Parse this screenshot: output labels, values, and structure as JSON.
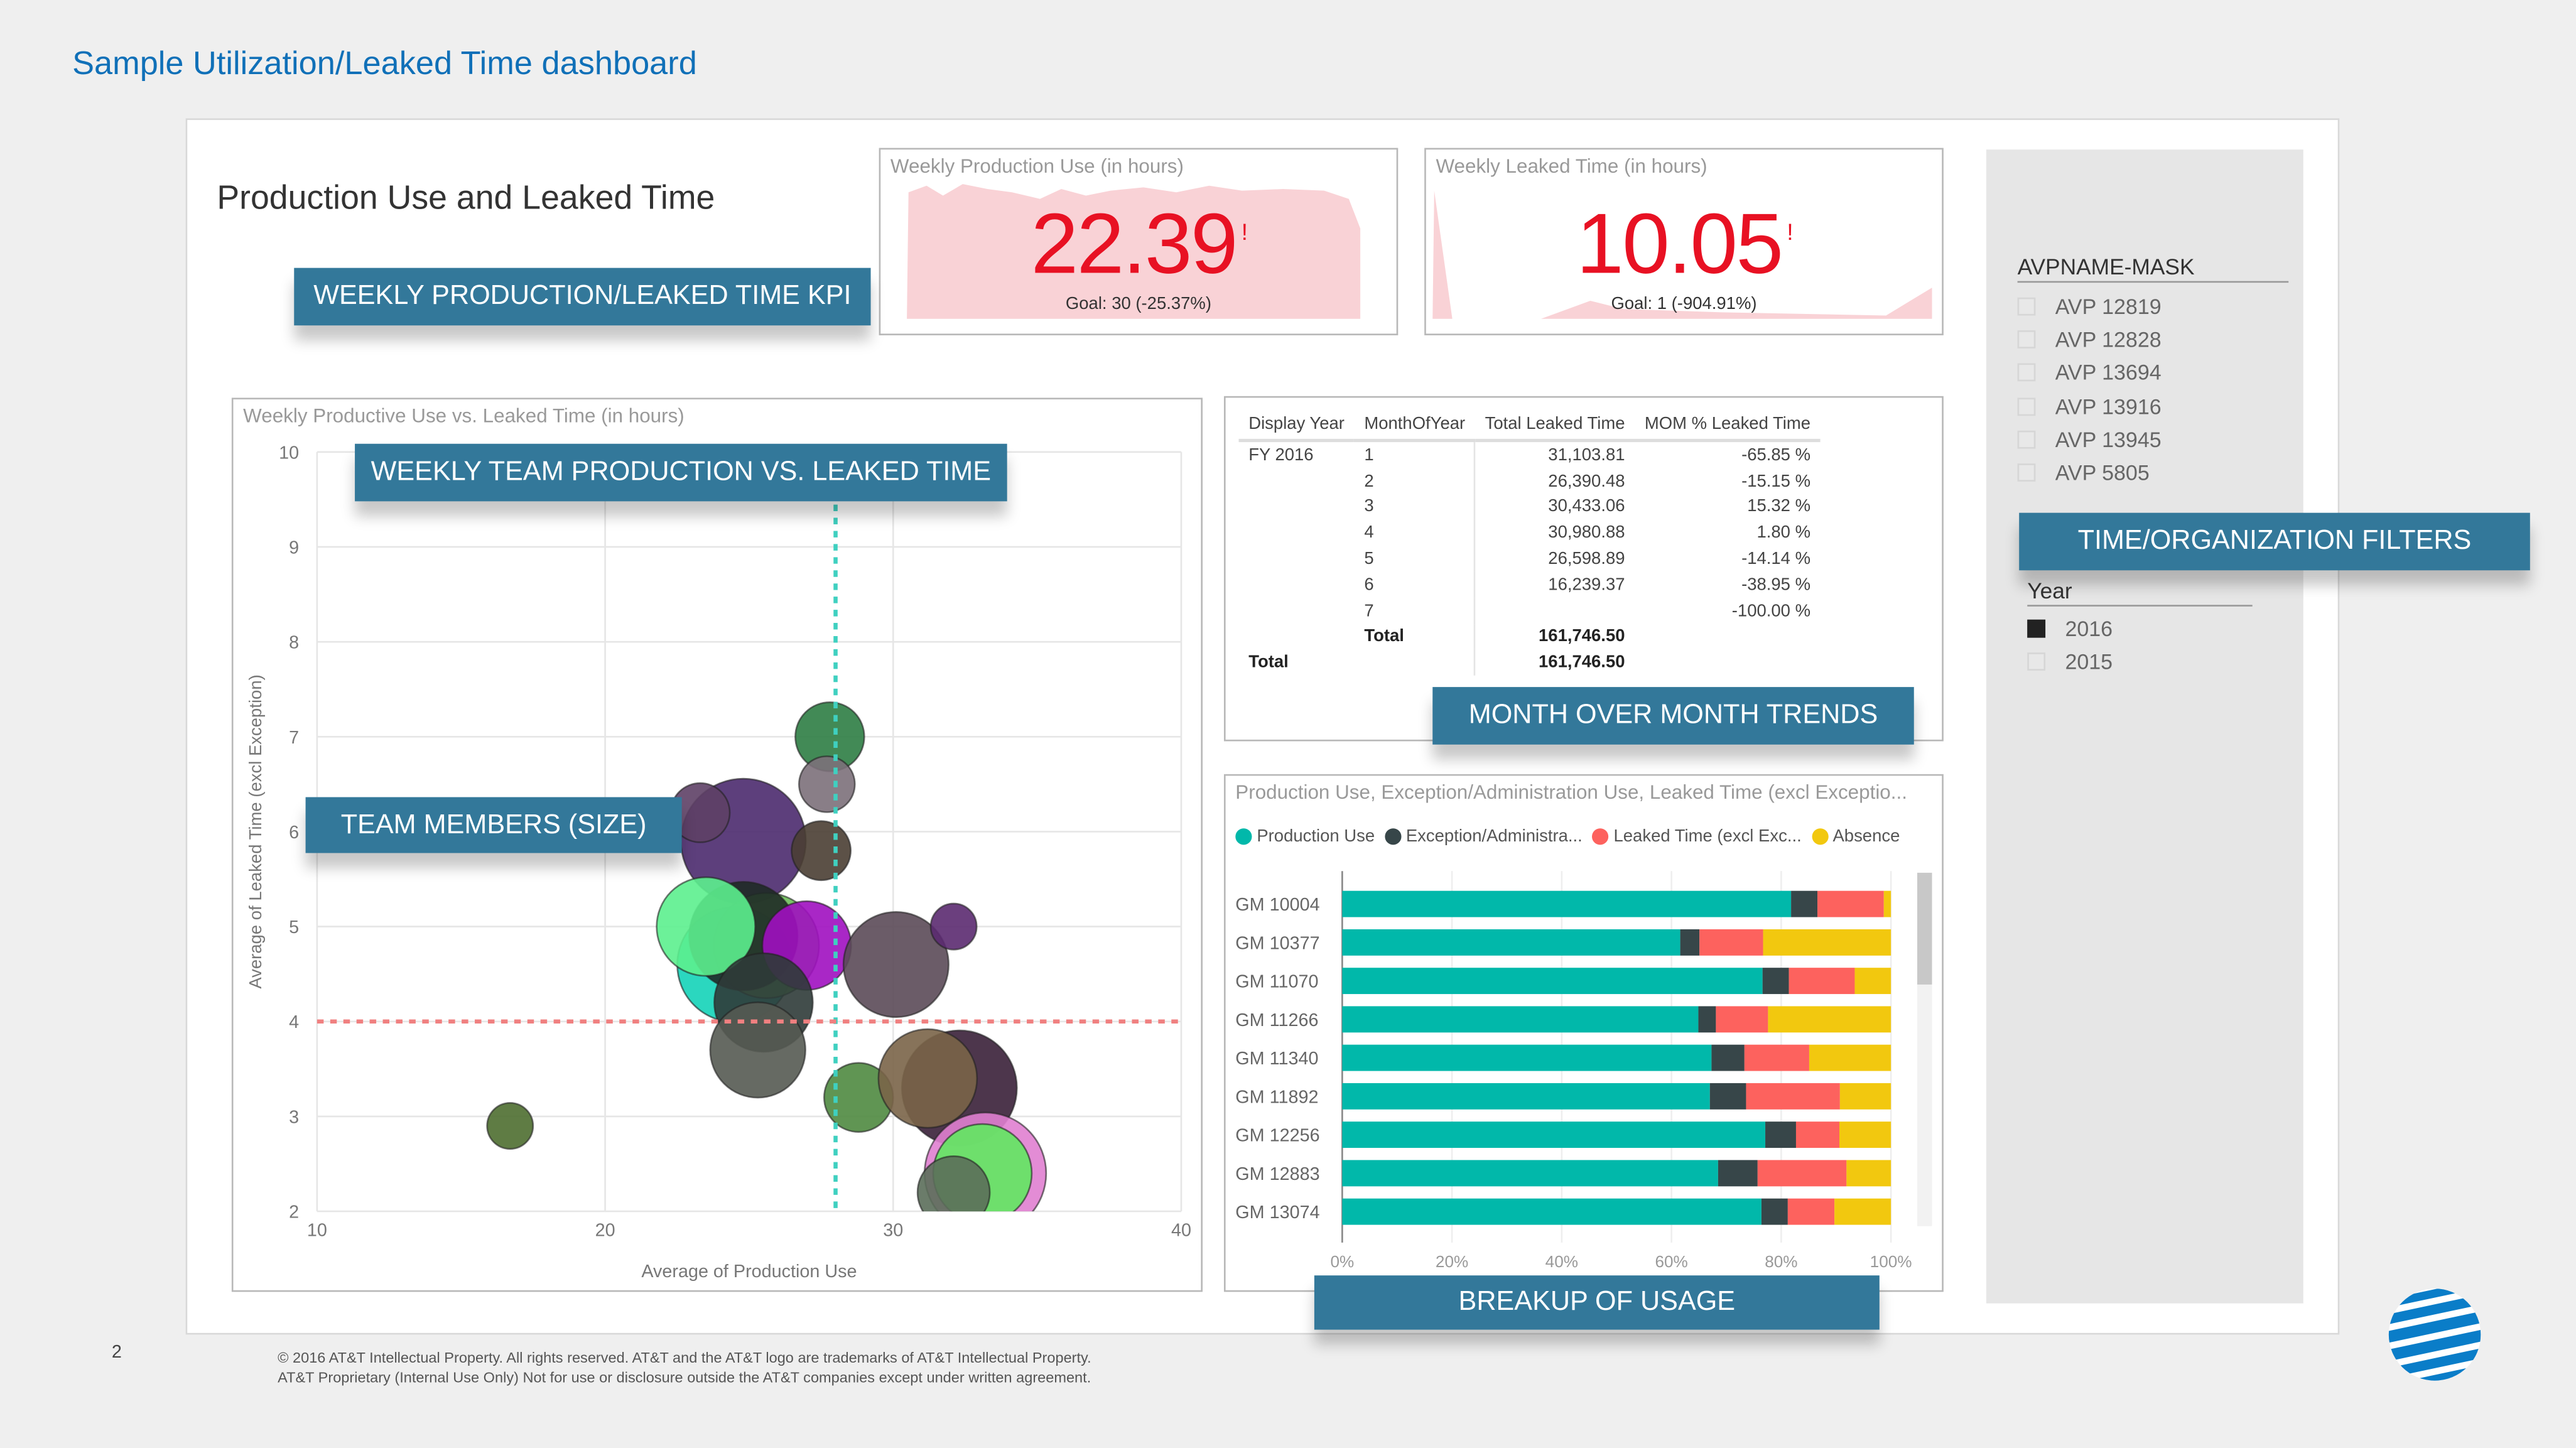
{
  "page": {
    "title": "Sample Utilization/Leaked Time dashboard",
    "page_number": "2",
    "footer_line1": "© 2016 AT&T Intellectual Property. All rights reserved. AT&T and the AT&T logo are trademarks of AT&T Intellectual Property.",
    "footer_line2": "AT&T Proprietary (Internal Use Only) Not for use or disclosure outside the AT&T companies except under written agreement.",
    "logo_icon": "att-globe-icon"
  },
  "report": {
    "title": "Production Use and Leaked Time"
  },
  "callouts": {
    "kpi": "WEEKLY PRODUCTION/LEAKED TIME KPI",
    "scatter": "WEEKLY TEAM PRODUCTION VS. LEAKED TIME",
    "size": "TEAM MEMBERS (SIZE)",
    "mom": "MONTH OVER MONTH TRENDS",
    "breakup": "BREAKUP OF USAGE",
    "filters": "TIME/ORGANIZATION FILTERS"
  },
  "kpis": [
    {
      "title": "Weekly Production Use (in hours)",
      "value": "22.39",
      "indicator": "!",
      "goal": "Goal: 30 (-25.37%)"
    },
    {
      "title": "Weekly Leaked Time (in hours)",
      "value": "10.05",
      "indicator": "!",
      "goal": "Goal: 1 (-904.91%)"
    }
  ],
  "filters": {
    "avp": {
      "header": "AVPNAME-MASK",
      "items": [
        {
          "label": "AVP 12819",
          "checked": false
        },
        {
          "label": "AVP 12828",
          "checked": false
        },
        {
          "label": "AVP 13694",
          "checked": false
        },
        {
          "label": "AVP 13916",
          "checked": false
        },
        {
          "label": "AVP 13945",
          "checked": false
        },
        {
          "label": "AVP 5805",
          "checked": false
        }
      ]
    },
    "year": {
      "header": "Year",
      "items": [
        {
          "label": "2016",
          "checked": true
        },
        {
          "label": "2015",
          "checked": false
        }
      ]
    }
  },
  "mom_table": {
    "columns": [
      "Display Year",
      "MonthOfYear",
      "Total Leaked Time",
      "MOM % Leaked Time"
    ],
    "rows": [
      [
        "FY 2016",
        "1",
        "31,103.81",
        "-65.85 %"
      ],
      [
        "",
        "2",
        "26,390.48",
        "-15.15 %"
      ],
      [
        "",
        "3",
        "30,433.06",
        "15.32 %"
      ],
      [
        "",
        "4",
        "30,980.88",
        "1.80 %"
      ],
      [
        "",
        "5",
        "26,598.89",
        "-14.14 %"
      ],
      [
        "",
        "6",
        "16,239.37",
        "-38.95 %"
      ],
      [
        "",
        "7",
        "",
        "-100.00 %"
      ]
    ],
    "subtotal": [
      "",
      "Total",
      "161,746.50",
      ""
    ],
    "total": [
      "Total",
      "",
      "161,746.50",
      ""
    ]
  },
  "chart_data": [
    {
      "type": "scatter",
      "title": "Weekly Productive Use vs. Leaked Time (in hours)",
      "xlabel": "Average of Production Use",
      "ylabel": "Average of Leaked Time (excl Exception)",
      "xlim": [
        10,
        40
      ],
      "ylim": [
        2,
        10
      ],
      "xticks": [
        "10",
        "20",
        "30",
        "40"
      ],
      "yticks": [
        "2",
        "3",
        "4",
        "5",
        "6",
        "7",
        "8",
        "9",
        "10"
      ],
      "reference_lines": {
        "x": 28,
        "y": 4,
        "x_color": "#3fd0c0",
        "y_color": "#f08080"
      },
      "points": [
        {
          "x": 24.8,
          "y": 5.9,
          "size": 38,
          "color": "#4b2a6e"
        },
        {
          "x": 23.3,
          "y": 6.2,
          "size": 18,
          "color": "#5e4066"
        },
        {
          "x": 27.8,
          "y": 7.0,
          "size": 21,
          "color": "#2e7d44"
        },
        {
          "x": 27.7,
          "y": 6.5,
          "size": 17,
          "color": "#7c707a"
        },
        {
          "x": 27.5,
          "y": 5.8,
          "size": 18,
          "color": "#4a3e33"
        },
        {
          "x": 24.5,
          "y": 4.6,
          "size": 35,
          "color": "#14d3b8"
        },
        {
          "x": 25.6,
          "y": 4.8,
          "size": 32,
          "color": "#6ec05a"
        },
        {
          "x": 24.8,
          "y": 4.9,
          "size": 33,
          "color": "#1f2a26"
        },
        {
          "x": 23.5,
          "y": 5.0,
          "size": 30,
          "color": "#5cf08e"
        },
        {
          "x": 27.0,
          "y": 4.8,
          "size": 27,
          "color": "#a010c0"
        },
        {
          "x": 25.5,
          "y": 4.2,
          "size": 30,
          "color": "#2f3b38"
        },
        {
          "x": 25.3,
          "y": 3.7,
          "size": 29,
          "color": "#555a52"
        },
        {
          "x": 30.1,
          "y": 4.6,
          "size": 32,
          "color": "#5b4a58"
        },
        {
          "x": 32.1,
          "y": 5.0,
          "size": 14,
          "color": "#5b2a70"
        },
        {
          "x": 16.7,
          "y": 2.9,
          "size": 14,
          "color": "#4e6e30"
        },
        {
          "x": 28.8,
          "y": 3.2,
          "size": 21,
          "color": "#4f8a40"
        },
        {
          "x": 32.3,
          "y": 3.3,
          "size": 35,
          "color": "#3a2038"
        },
        {
          "x": 31.2,
          "y": 3.4,
          "size": 30,
          "color": "#7a6448"
        },
        {
          "x": 33.2,
          "y": 2.4,
          "size": 37,
          "color": "#e080d0"
        },
        {
          "x": 33.1,
          "y": 2.4,
          "size": 30,
          "color": "#60e860"
        },
        {
          "x": 32.1,
          "y": 2.2,
          "size": 22,
          "color": "#5b6e5a"
        }
      ]
    },
    {
      "type": "bar",
      "stacked": "100%",
      "orientation": "horizontal",
      "title": "Production Use, Exception/Administration Use, Leaked Time (excl Exceptio...",
      "xticks": [
        "0%",
        "20%",
        "40%",
        "60%",
        "80%",
        "100%"
      ],
      "xlim": [
        0,
        100
      ],
      "categories": [
        "GM 10004",
        "GM 10377",
        "GM 11070",
        "GM 11266",
        "GM 11340",
        "GM 11892",
        "GM 12256",
        "GM 12883",
        "GM 13074"
      ],
      "series": [
        {
          "name": "Production Use",
          "color": "#01b8aa",
          "values": [
            81.8,
            61.6,
            76.6,
            64.9,
            67.3,
            67.0,
            77.1,
            68.5,
            76.4
          ]
        },
        {
          "name": "Exception/Administra...",
          "color": "#374649",
          "values": [
            4.8,
            3.5,
            4.8,
            3.2,
            6.0,
            6.6,
            5.6,
            7.2,
            4.8
          ]
        },
        {
          "name": "Leaked Time (excl Exc...",
          "color": "#fd625e",
          "values": [
            12.1,
            11.6,
            12.0,
            9.5,
            11.8,
            17.1,
            7.9,
            16.2,
            8.5
          ]
        },
        {
          "name": "Absence",
          "color": "#f2c80f",
          "values": [
            1.3,
            23.3,
            6.6,
            22.4,
            14.9,
            9.3,
            9.4,
            8.1,
            10.3
          ]
        }
      ]
    }
  ]
}
